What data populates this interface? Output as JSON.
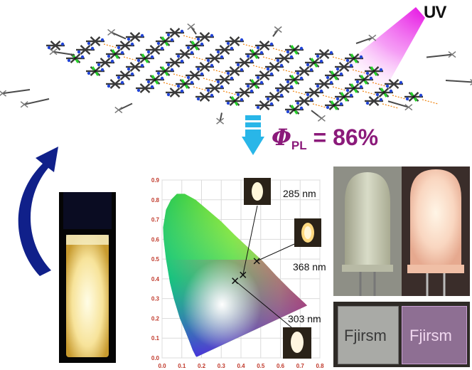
{
  "header": {
    "uv_label": "UV",
    "quantum_yield": {
      "symbol": "Φ",
      "subscript": "PL",
      "value_text": " = 86%"
    }
  },
  "cie_chart": {
    "y_ticks": [
      "0.9",
      "0.8",
      "0.7",
      "0.6",
      "0.5",
      "0.4",
      "0.3",
      "0.2",
      "0.1",
      "0.0"
    ],
    "x_ticks": [
      "0.0",
      "0.1",
      "0.2",
      "0.3",
      "0.4",
      "0.5",
      "0.6",
      "0.7",
      "0.8"
    ],
    "points": [
      {
        "label": "285 nm",
        "x": 0.41,
        "y": 0.42
      },
      {
        "label": "368 nm",
        "x": 0.48,
        "y": 0.49
      },
      {
        "label": "303 nm",
        "x": 0.37,
        "y": 0.39
      }
    ]
  },
  "photos": {
    "brand_left": "Fjirsm",
    "brand_right": "Fjirsm"
  },
  "colors": {
    "uv_magenta": "#e400e0",
    "phi_purple": "#8b1a7a",
    "arrow_cyan": "#29b6e8",
    "arrow_navy": "#10208a",
    "tick_red": "#c0392b"
  }
}
